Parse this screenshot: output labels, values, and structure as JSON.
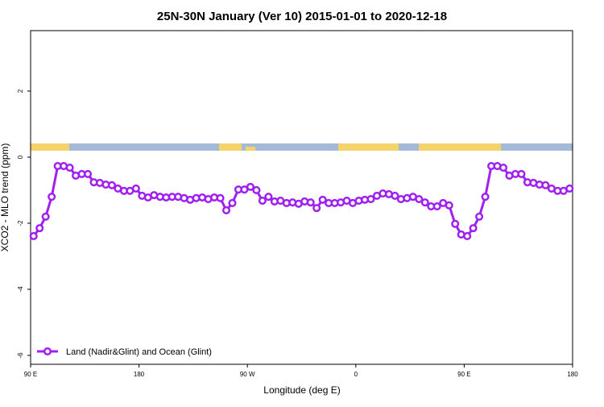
{
  "chart_data": {
    "type": "line",
    "title": "25N-30N January (Ver 10)   2015-01-01 to 2020-12-18",
    "x_label": "Longitude (deg E)",
    "y_label": "XCO2 - MLO trend (ppm)",
    "xlim": [
      90,
      540
    ],
    "ylim": [
      -6.27,
      3.83
    ],
    "xticks": [
      {
        "value": 90,
        "label": "90 E"
      },
      180,
      {
        "value": 270,
        "label": "90 W"
      },
      {
        "value": 360,
        "label": "0"
      },
      {
        "value": 450,
        "label": "90 E"
      },
      {
        "value": 540,
        "label": "180"
      }
    ],
    "yticks": [
      -6,
      -4,
      -2,
      0,
      2
    ],
    "legend": "bottom-left",
    "x": [
      92.5,
      97.5,
      102.5,
      107.5,
      112.5,
      117.5,
      122.5,
      127.5,
      132.5,
      137.5,
      142.5,
      147.5,
      152.5,
      157.5,
      162.5,
      167.5,
      172.5,
      177.5,
      182.5,
      187.5,
      192.5,
      197.5,
      202.5,
      207.5,
      212.5,
      217.5,
      222.5,
      227.5,
      232.5,
      237.5,
      242.5,
      247.5,
      252.5,
      257.5,
      262.5,
      267.5,
      272.5,
      277.5,
      282.5,
      287.5,
      292.5,
      297.5,
      302.5,
      307.5,
      312.5,
      317.5,
      322.5,
      327.5,
      332.5,
      337.5,
      342.5,
      347.5,
      352.5,
      357.5,
      362.5,
      367.5,
      372.5,
      377.5,
      382.5,
      387.5,
      392.5,
      397.5,
      402.5,
      407.5,
      412.5,
      417.5,
      422.5,
      427.5,
      432.5,
      437.5,
      442.5,
      447.5,
      452.5,
      457.5,
      462.5,
      467.5,
      472.5,
      477.5,
      482.5,
      487.5,
      492.5,
      497.5,
      502.5,
      507.5,
      512.5,
      517.5,
      522.5,
      527.5,
      532.5,
      537.5
    ],
    "series": [
      {
        "name": "Land (Nadir&Glint) and Ocean (Glint)",
        "color": "#a020f0",
        "values": [
          -2.39,
          -2.15,
          -1.8,
          -1.2,
          -0.27,
          -0.27,
          -0.32,
          -0.56,
          -0.51,
          -0.51,
          -0.76,
          -0.78,
          -0.83,
          -0.85,
          -0.95,
          -1.02,
          -1.02,
          -0.95,
          -1.17,
          -1.22,
          -1.15,
          -1.2,
          -1.22,
          -1.2,
          -1.2,
          -1.24,
          -1.29,
          -1.24,
          -1.22,
          -1.27,
          -1.22,
          -1.24,
          -1.61,
          -1.39,
          -0.98,
          -0.98,
          -0.9,
          -1.0,
          -1.32,
          -1.2,
          -1.34,
          -1.32,
          -1.39,
          -1.37,
          -1.41,
          -1.34,
          -1.37,
          -1.54,
          -1.29,
          -1.39,
          -1.39,
          -1.37,
          -1.32,
          -1.39,
          -1.32,
          -1.29,
          -1.27,
          -1.17,
          -1.1,
          -1.12,
          -1.17,
          -1.27,
          -1.24,
          -1.2,
          -1.27,
          -1.37,
          -1.49,
          -1.49,
          -1.39,
          -1.46,
          -2.02,
          -2.34,
          -2.39,
          -2.15,
          -1.8,
          -1.2,
          -0.27,
          -0.27,
          -0.32,
          -0.56,
          -0.51,
          -0.51,
          -0.76,
          -0.78,
          -0.83,
          -0.85,
          -0.95,
          -1.02,
          -1.02,
          -0.95
        ]
      }
    ]
  }
}
